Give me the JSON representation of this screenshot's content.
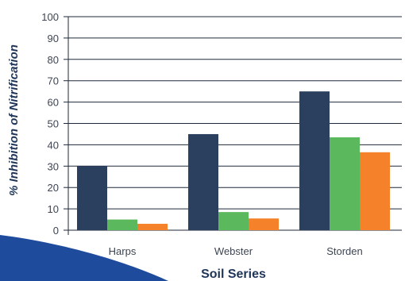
{
  "chart_data": {
    "type": "bar",
    "categories": [
      "Harps",
      "Webster",
      "Storden"
    ],
    "series": [
      {
        "values": [
          30,
          45,
          65
        ],
        "color": "#2b3f5f"
      },
      {
        "values": [
          5,
          8.5,
          43.5
        ],
        "color": "#5cb85c"
      },
      {
        "values": [
          3,
          5.5,
          36.5
        ],
        "color": "#f5822a"
      }
    ],
    "xlabel": "Soil Series",
    "ylabel": "% Inhibition of Nitrification",
    "ylim": [
      0,
      100
    ],
    "yticks": [
      0,
      10,
      20,
      30,
      40,
      50,
      60,
      70,
      80,
      90,
      100
    ],
    "grid": true,
    "legend": false
  },
  "decor": {
    "corner_color": "#1e4b9b"
  }
}
